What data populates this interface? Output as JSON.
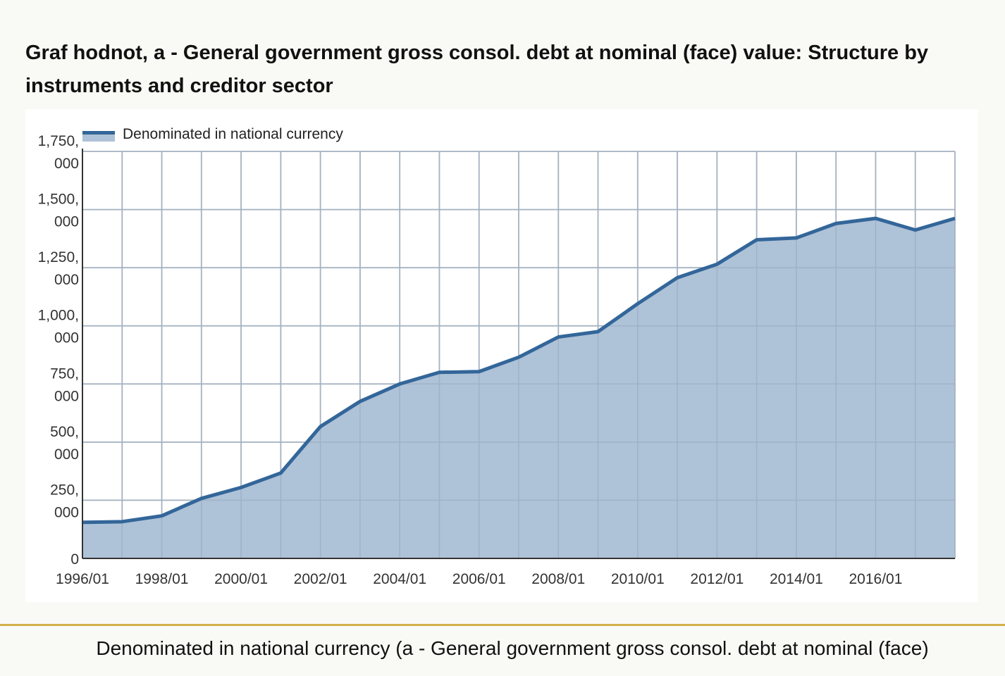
{
  "title": "Graf hodnot, a - General government gross consol. debt at nominal (face) value: Structure by instruments and creditor sector",
  "caption": "Denominated in national currency (a - General government gross consol. debt at nominal (face)",
  "colors": {
    "line": "#336699",
    "fill": "#aec2d8",
    "grid": "#cccccc",
    "axis": "#333333",
    "accent": "#d4b04a"
  },
  "chart_data": {
    "type": "area",
    "x": [
      "1996/01",
      "1997/01",
      "1998/01",
      "1999/01",
      "2000/01",
      "2001/01",
      "2002/01",
      "2003/01",
      "2004/01",
      "2005/01",
      "2006/01",
      "2007/01",
      "2008/01",
      "2009/01",
      "2010/01",
      "2011/01",
      "2012/01",
      "2013/01",
      "2014/01",
      "2015/01",
      "2016/01",
      "2017/01",
      "2018/01"
    ],
    "series": [
      {
        "name": "Denominated in national currency",
        "values": [
          155000,
          158000,
          183000,
          258000,
          305000,
          367000,
          567000,
          675000,
          750000,
          800000,
          803000,
          865000,
          952000,
          975000,
          1095000,
          1207000,
          1265000,
          1370000,
          1378000,
          1440000,
          1462000,
          1412000,
          1462000
        ]
      }
    ],
    "x_tick_labels": [
      "1996/01",
      "1998/01",
      "2000/01",
      "2002/01",
      "2004/01",
      "2006/01",
      "2008/01",
      "2010/01",
      "2012/01",
      "2014/01",
      "2016/01"
    ],
    "y_tick_labels": [
      {
        "value": 0,
        "lines": [
          "0"
        ]
      },
      {
        "value": 250000,
        "lines": [
          "250,",
          "000"
        ]
      },
      {
        "value": 500000,
        "lines": [
          "500,",
          "000"
        ]
      },
      {
        "value": 750000,
        "lines": [
          "750,",
          "000"
        ]
      },
      {
        "value": 1000000,
        "lines": [
          "1,000,",
          "000"
        ]
      },
      {
        "value": 1250000,
        "lines": [
          "1,250,",
          "000"
        ]
      },
      {
        "value": 1500000,
        "lines": [
          "1,500,",
          "000"
        ]
      },
      {
        "value": 1750000,
        "lines": [
          "1,750,",
          "000"
        ]
      }
    ],
    "ylim": [
      0,
      1750000
    ],
    "grid": true,
    "legend_position": "top-left"
  }
}
